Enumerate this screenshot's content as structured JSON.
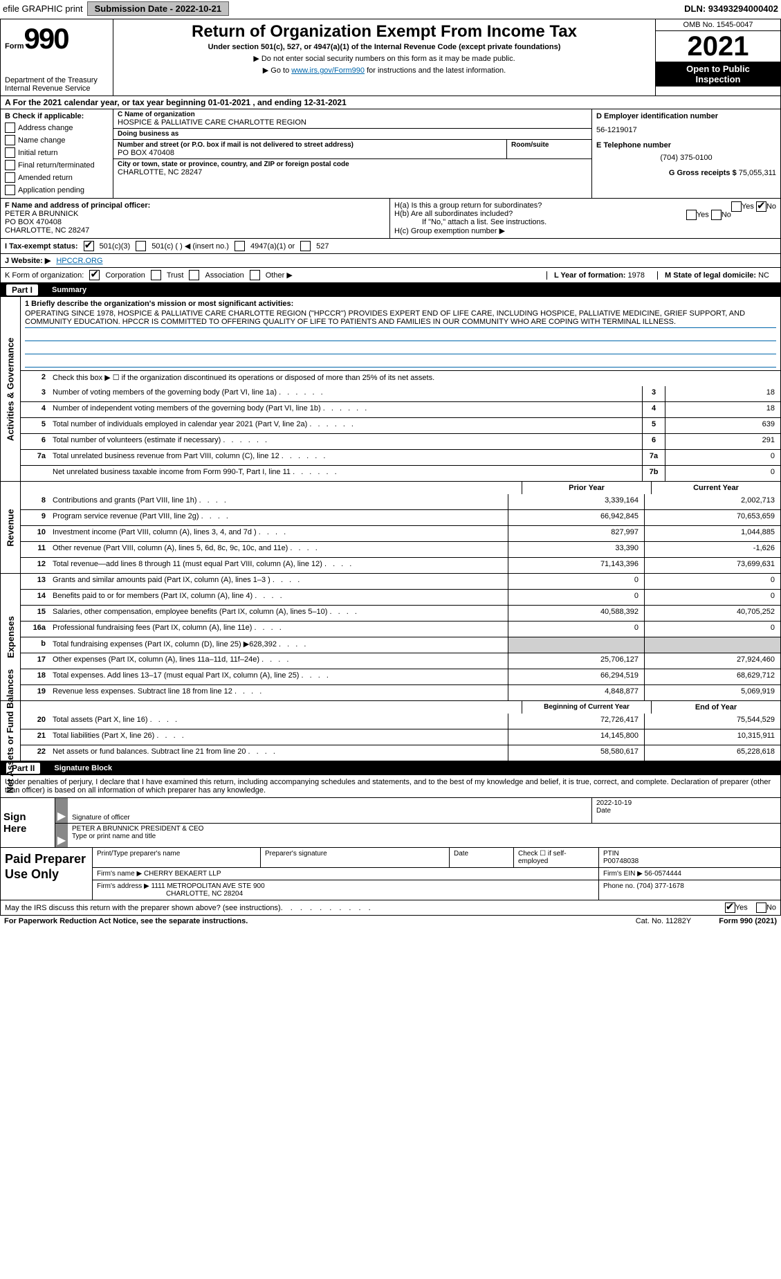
{
  "top": {
    "efile": "efile GRAPHIC print",
    "submission_label": "Submission Date - 2022-10-21",
    "dln": "DLN: 93493294000402"
  },
  "header": {
    "form_word": "Form",
    "form_number": "990",
    "dept": "Department of the Treasury",
    "irs": "Internal Revenue Service",
    "title": "Return of Organization Exempt From Income Tax",
    "subtitle": "Under section 501(c), 527, or 4947(a)(1) of the Internal Revenue Code (except private foundations)",
    "note1": "▶ Do not enter social security numbers on this form as it may be made public.",
    "note2_pre": "▶ Go to ",
    "note2_link": "www.irs.gov/Form990",
    "note2_post": " for instructions and the latest information.",
    "omb": "OMB No. 1545-0047",
    "year": "2021",
    "public1": "Open to Public",
    "public2": "Inspection"
  },
  "period": "A For the 2021 calendar year, or tax year beginning 01-01-2021    , and ending 12-31-2021",
  "block_b": {
    "hdr": "B Check if applicable:",
    "opts": [
      "Address change",
      "Name change",
      "Initial return",
      "Final return/terminated",
      "Amended return",
      "Application pending"
    ]
  },
  "block_c": {
    "name_lbl": "C Name of organization",
    "name": "HOSPICE & PALLIATIVE CARE CHARLOTTE REGION",
    "dba_lbl": "Doing business as",
    "addr_lbl": "Number and street (or P.O. box if mail is not delivered to street address)",
    "room_lbl": "Room/suite",
    "addr": "PO BOX 470408",
    "city_lbl": "City or town, state or province, country, and ZIP or foreign postal code",
    "city": "CHARLOTTE, NC  28247"
  },
  "block_d": {
    "ein_lbl": "D Employer identification number",
    "ein": "56-1219017",
    "tel_lbl": "E Telephone number",
    "tel": "(704) 375-0100",
    "gross_lbl": "G Gross receipts $",
    "gross": "75,055,311"
  },
  "block_f": {
    "lbl": "F  Name and address of principal officer:",
    "name": "PETER A BRUNNICK",
    "addr1": "PO BOX 470408",
    "addr2": "CHARLOTTE, NC  28247"
  },
  "block_h": {
    "ha": "H(a)  Is this a group return for subordinates?",
    "hb": "H(b)  Are all subordinates included?",
    "hb_note": "If \"No,\" attach a list. See instructions.",
    "hc": "H(c)  Group exemption number ▶",
    "yes": "Yes",
    "no": "No"
  },
  "tax_status": {
    "lbl": "I  Tax-exempt status:",
    "o1": "501(c)(3)",
    "o2": "501(c) (  ) ◀ (insert no.)",
    "o3": "4947(a)(1) or",
    "o4": "527"
  },
  "website": {
    "lbl": "J  Website: ▶",
    "val": " HPCCR.ORG"
  },
  "org_form": {
    "lbl": "K Form of organization:",
    "o1": "Corporation",
    "o2": "Trust",
    "o3": "Association",
    "o4": "Other ▶",
    "l_lbl": "L Year of formation:",
    "l_val": "1978",
    "m_lbl": "M State of legal domicile:",
    "m_val": "NC"
  },
  "part1": {
    "tag": "Part I",
    "title": "Summary"
  },
  "mission": {
    "lbl": "1  Briefly describe the organization's mission or most significant activities:",
    "text": "OPERATING SINCE 1978, HOSPICE & PALLIATIVE CARE CHARLOTTE REGION (\"HPCCR\") PROVIDES EXPERT END OF LIFE CARE, INCLUDING HOSPICE, PALLIATIVE MEDICINE, GRIEF SUPPORT, AND COMMUNITY EDUCATION. HPCCR IS COMMITTED TO OFFERING QUALITY OF LIFE TO PATIENTS AND FAMILIES IN OUR COMMUNITY WHO ARE COPING WITH TERMINAL ILLNESS."
  },
  "sections": {
    "gov": "Activities & Governance",
    "rev": "Revenue",
    "exp": "Expenses",
    "net": "Net Assets or Fund Balances"
  },
  "line2": "Check this box ▶ ☐  if the organization discontinued its operations or disposed of more than 25% of its net assets.",
  "gov_rows": [
    {
      "n": "3",
      "t": "Number of voting members of the governing body (Part VI, line 1a)",
      "box": "3",
      "v": "18"
    },
    {
      "n": "4",
      "t": "Number of independent voting members of the governing body (Part VI, line 1b)",
      "box": "4",
      "v": "18"
    },
    {
      "n": "5",
      "t": "Total number of individuals employed in calendar year 2021 (Part V, line 2a)",
      "box": "5",
      "v": "639"
    },
    {
      "n": "6",
      "t": "Total number of volunteers (estimate if necessary)",
      "box": "6",
      "v": "291"
    },
    {
      "n": "7a",
      "t": "Total unrelated business revenue from Part VIII, column (C), line 12",
      "box": "7a",
      "v": "0"
    },
    {
      "n": "",
      "t": "Net unrelated business taxable income from Form 990-T, Part I, line 11",
      "box": "7b",
      "v": "0"
    }
  ],
  "col_hdr": {
    "py": "Prior Year",
    "cy": "Current Year",
    "bcy": "Beginning of Current Year",
    "eoy": "End of Year"
  },
  "rev_rows": [
    {
      "n": "8",
      "t": "Contributions and grants (Part VIII, line 1h)",
      "py": "3,339,164",
      "cy": "2,002,713"
    },
    {
      "n": "9",
      "t": "Program service revenue (Part VIII, line 2g)",
      "py": "66,942,845",
      "cy": "70,653,659"
    },
    {
      "n": "10",
      "t": "Investment income (Part VIII, column (A), lines 3, 4, and 7d )",
      "py": "827,997",
      "cy": "1,044,885"
    },
    {
      "n": "11",
      "t": "Other revenue (Part VIII, column (A), lines 5, 6d, 8c, 9c, 10c, and 11e)",
      "py": "33,390",
      "cy": "-1,626"
    },
    {
      "n": "12",
      "t": "Total revenue—add lines 8 through 11 (must equal Part VIII, column (A), line 12)",
      "py": "71,143,396",
      "cy": "73,699,631"
    }
  ],
  "exp_rows": [
    {
      "n": "13",
      "t": "Grants and similar amounts paid (Part IX, column (A), lines 1–3 )",
      "py": "0",
      "cy": "0"
    },
    {
      "n": "14",
      "t": "Benefits paid to or for members (Part IX, column (A), line 4)",
      "py": "0",
      "cy": "0"
    },
    {
      "n": "15",
      "t": "Salaries, other compensation, employee benefits (Part IX, column (A), lines 5–10)",
      "py": "40,588,392",
      "cy": "40,705,252"
    },
    {
      "n": "16a",
      "t": "Professional fundraising fees (Part IX, column (A), line 11e)",
      "py": "0",
      "cy": "0"
    },
    {
      "n": "b",
      "t": "Total fundraising expenses (Part IX, column (D), line 25) ▶628,392",
      "py": "",
      "cy": "",
      "shade": true
    },
    {
      "n": "17",
      "t": "Other expenses (Part IX, column (A), lines 11a–11d, 11f–24e)",
      "py": "25,706,127",
      "cy": "27,924,460"
    },
    {
      "n": "18",
      "t": "Total expenses. Add lines 13–17 (must equal Part IX, column (A), line 25)",
      "py": "66,294,519",
      "cy": "68,629,712"
    },
    {
      "n": "19",
      "t": "Revenue less expenses. Subtract line 18 from line 12",
      "py": "4,848,877",
      "cy": "5,069,919"
    }
  ],
  "net_rows": [
    {
      "n": "20",
      "t": "Total assets (Part X, line 16)",
      "py": "72,726,417",
      "cy": "75,544,529"
    },
    {
      "n": "21",
      "t": "Total liabilities (Part X, line 26)",
      "py": "14,145,800",
      "cy": "10,315,911"
    },
    {
      "n": "22",
      "t": "Net assets or fund balances. Subtract line 21 from line 20",
      "py": "58,580,617",
      "cy": "65,228,618"
    }
  ],
  "part2": {
    "tag": "Part II",
    "title": "Signature Block"
  },
  "sig": {
    "decl": "Under penalties of perjury, I declare that I have examined this return, including accompanying schedules and statements, and to the best of my knowledge and belief, it is true, correct, and complete. Declaration of preparer (other than officer) is based on all information of which preparer has any knowledge.",
    "sign_here": "Sign Here",
    "sig_officer": "Signature of officer",
    "date_lbl": "Date",
    "date": "2022-10-19",
    "name": "PETER A BRUNNICK  PRESIDENT & CEO",
    "name_lbl": "Type or print name and title"
  },
  "prep": {
    "title": "Paid Preparer Use Only",
    "h1": "Print/Type preparer's name",
    "h2": "Preparer's signature",
    "h3": "Date",
    "h4": "Check ☐ if self-employed",
    "h5_lbl": "PTIN",
    "h5": "P00748038",
    "firm_name_lbl": "Firm's name      ▶",
    "firm_name": "CHERRY BEKAERT LLP",
    "firm_ein_lbl": "Firm's EIN ▶",
    "firm_ein": "56-0574444",
    "firm_addr_lbl": "Firm's address ▶",
    "firm_addr1": "1111 METROPOLITAN AVE STE 900",
    "firm_addr2": "CHARLOTTE, NC  28204",
    "phone_lbl": "Phone no.",
    "phone": "(704) 377-1678"
  },
  "footer": {
    "discuss": "May the IRS discuss this return with the preparer shown above? (see instructions)",
    "yes": "Yes",
    "no": "No",
    "pra": "For Paperwork Reduction Act Notice, see the separate instructions.",
    "cat": "Cat. No. 11282Y",
    "form": "Form 990 (2021)"
  }
}
